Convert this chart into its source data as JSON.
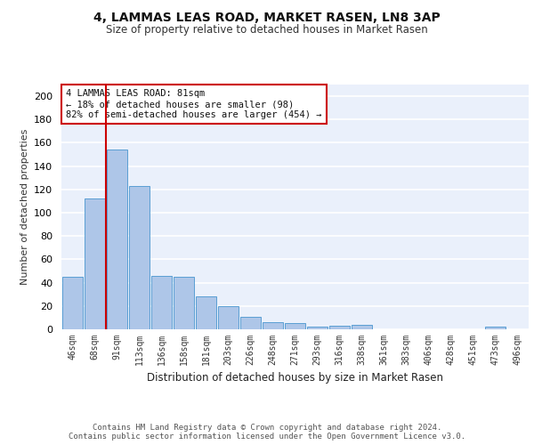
{
  "title": "4, LAMMAS LEAS ROAD, MARKET RASEN, LN8 3AP",
  "subtitle": "Size of property relative to detached houses in Market Rasen",
  "xlabel": "Distribution of detached houses by size in Market Rasen",
  "ylabel": "Number of detached properties",
  "categories": [
    "46sqm",
    "68sqm",
    "91sqm",
    "113sqm",
    "136sqm",
    "158sqm",
    "181sqm",
    "203sqm",
    "226sqm",
    "248sqm",
    "271sqm",
    "293sqm",
    "316sqm",
    "338sqm",
    "361sqm",
    "383sqm",
    "406sqm",
    "428sqm",
    "451sqm",
    "473sqm",
    "496sqm"
  ],
  "values": [
    45,
    112,
    154,
    123,
    46,
    45,
    28,
    20,
    11,
    6,
    5,
    2,
    3,
    4,
    0,
    0,
    0,
    0,
    0,
    2,
    0
  ],
  "bar_color": "#aec6e8",
  "bar_edge_color": "#5a9fd4",
  "background_color": "#eaf0fb",
  "vline_color": "#cc0000",
  "vline_x_index": 2,
  "annotation_text": "4 LAMMAS LEAS ROAD: 81sqm\n← 18% of detached houses are smaller (98)\n82% of semi-detached houses are larger (454) →",
  "annotation_box_color": "#ffffff",
  "annotation_box_edge_color": "#cc0000",
  "ylim": [
    0,
    210
  ],
  "yticks": [
    0,
    20,
    40,
    60,
    80,
    100,
    120,
    140,
    160,
    180,
    200
  ],
  "footer": "Contains HM Land Registry data © Crown copyright and database right 2024.\nContains public sector information licensed under the Open Government Licence v3.0."
}
